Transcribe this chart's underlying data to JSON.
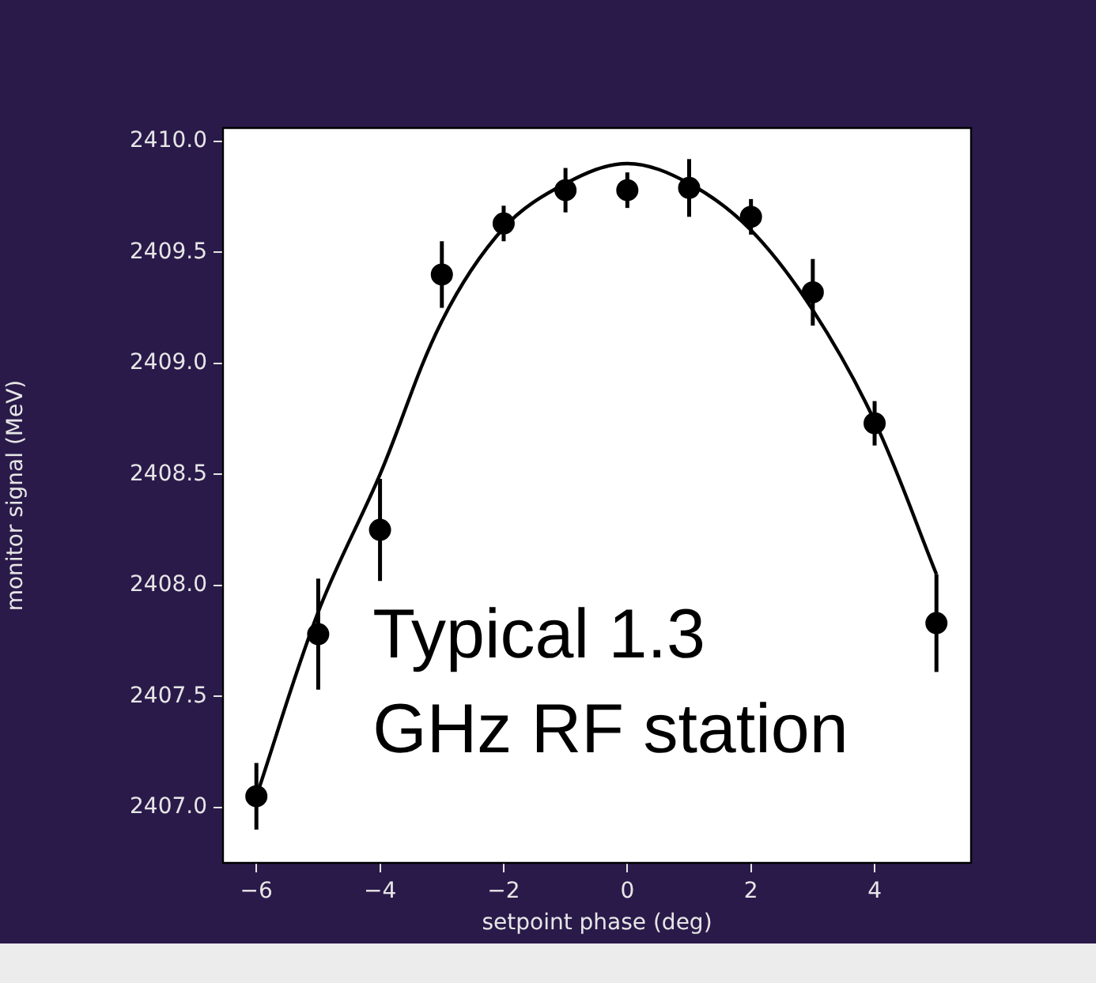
{
  "chart_data": {
    "type": "scatter",
    "xlabel": "setpoint phase (deg)",
    "ylabel": "monitor signal (MeV)",
    "xlim": [
      -6.54,
      5.56
    ],
    "ylim": [
      2406.75,
      2410.06
    ],
    "xticks": [
      {
        "value": -6,
        "label": "−6"
      },
      {
        "value": -4,
        "label": "−4"
      },
      {
        "value": -2,
        "label": "−2"
      },
      0,
      2,
      4
    ],
    "yticks": [
      {
        "value": 2407,
        "label": "2407.0"
      },
      {
        "value": 2407.5,
        "label": "2407.5"
      },
      {
        "value": 2408,
        "label": "2408.0"
      },
      {
        "value": 2408.5,
        "label": "2408.5"
      },
      {
        "value": 2409,
        "label": "2409.0"
      },
      {
        "value": 2409.5,
        "label": "2409.5"
      },
      {
        "value": 2410,
        "label": "2410.0"
      }
    ],
    "grid": false,
    "legend": false,
    "marker": "circle",
    "annotations": [
      "Typical 1.3\nGHz RF station"
    ],
    "series": [
      {
        "color": "#000000",
        "x": [
          -6,
          -5,
          -4,
          -3,
          -2,
          -1,
          0,
          1,
          2,
          3,
          4,
          5
        ],
        "values": [
          2407.05,
          2407.78,
          2408.25,
          2409.4,
          2409.63,
          2409.78,
          2409.78,
          2409.79,
          2409.66,
          2409.32,
          2408.73,
          2407.83
        ],
        "errors": [
          0.15,
          0.25,
          0.23,
          0.15,
          0.08,
          0.1,
          0.08,
          0.13,
          0.08,
          0.15,
          0.1,
          0.22
        ]
      },
      {
        "type": "line",
        "color": "#000000",
        "marker": "none",
        "x": [
          -6,
          -5,
          -4,
          -3,
          -2,
          -1,
          0,
          1,
          2,
          3,
          4,
          5
        ],
        "values": [
          2407.05,
          2407.88,
          2408.5,
          2409.19,
          2409.61,
          2409.81,
          2409.9,
          2409.81,
          2409.6,
          2409.24,
          2408.74,
          2408.05
        ]
      }
    ]
  }
}
